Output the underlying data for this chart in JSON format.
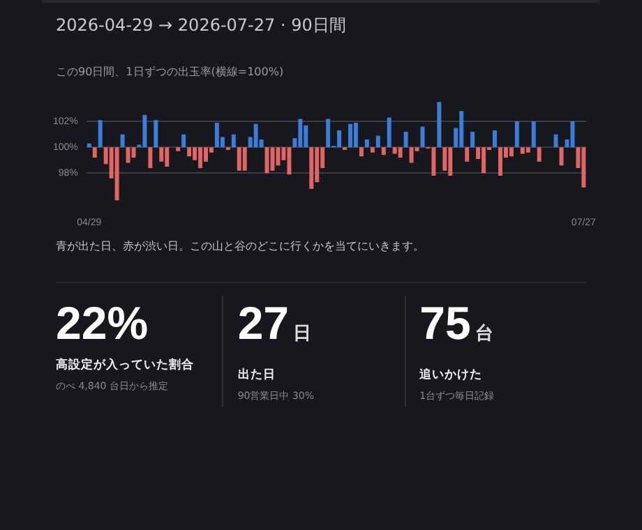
{
  "chart_data": [
    {
      "type": "bar",
      "title": "2026-04-29 → 2026-07-27 · 90日間",
      "subtitle": "この90日間、1日ずつの出玉率(横線=100%)",
      "annotations": [
        "青が出た日、赤が渋い日。この山と谷のどこに行くかを当てにいきます。"
      ],
      "categories": [
        "04/29",
        null,
        null,
        null,
        null,
        null,
        null,
        null,
        null,
        null,
        null,
        null,
        null,
        null,
        null,
        null,
        null,
        null,
        null,
        null,
        null,
        null,
        null,
        null,
        null,
        null,
        null,
        null,
        null,
        null,
        null,
        null,
        null,
        null,
        null,
        null,
        null,
        null,
        null,
        null,
        null,
        null,
        null,
        null,
        null,
        null,
        null,
        null,
        null,
        null,
        null,
        null,
        null,
        null,
        null,
        null,
        null,
        null,
        null,
        null,
        null,
        null,
        null,
        null,
        null,
        null,
        null,
        null,
        null,
        null,
        null,
        null,
        null,
        null,
        null,
        null,
        null,
        null,
        null,
        null,
        null,
        null,
        null,
        null,
        null,
        null,
        null,
        null,
        null,
        "07/27"
      ],
      "values": [
        0.3,
        -0.8,
        2.1,
        -1.3,
        -2.4,
        -4.1,
        1.0,
        -1.2,
        -0.8,
        0.2,
        2.5,
        -1.6,
        2.1,
        -1.1,
        -1.5,
        null,
        -0.3,
        1.0,
        -0.7,
        -1.0,
        -1.6,
        -1.1,
        -0.4,
        1.9,
        0.8,
        -0.2,
        1.0,
        -1.8,
        -1.8,
        0.8,
        1.8,
        0.6,
        -2.0,
        -1.8,
        -1.4,
        -1.0,
        -2.1,
        0.7,
        2.2,
        1.7,
        -3.2,
        -2.7,
        -1.6,
        2.2,
        0.1,
        1.3,
        -0.2,
        1.8,
        1.9,
        -0.7,
        0.6,
        -0.4,
        0.9,
        -0.6,
        2.3,
        -0.5,
        -0.8,
        1.2,
        -1.2,
        -0.3,
        1.6,
        -0.1,
        -2.2,
        3.5,
        -1.8,
        -2.2,
        1.5,
        2.8,
        -1.1,
        1.2,
        -0.9,
        -2.0,
        -0.2,
        1.3,
        -2.2,
        -0.8,
        -0.7,
        2.0,
        -0.5,
        -0.4,
        2.0,
        -1.1,
        null,
        null,
        1.0,
        -1.4,
        0.6,
        2.0,
        -1.6,
        -3.1
      ],
      "base": [
        100,
        100,
        100,
        100,
        100,
        100,
        100,
        100,
        100,
        100,
        100,
        100,
        100,
        100,
        100,
        null,
        100,
        100,
        100,
        100,
        100,
        100,
        100,
        100,
        100,
        100,
        100,
        100,
        100,
        100,
        100,
        100,
        100,
        100,
        100,
        100,
        100,
        100,
        100,
        100,
        100,
        100,
        100,
        100,
        100,
        100,
        100,
        100,
        100,
        100,
        100,
        100,
        100,
        100,
        100,
        100,
        100,
        100,
        100,
        100,
        100,
        100,
        100,
        100,
        100,
        100,
        100,
        100,
        100,
        100,
        100,
        100,
        100,
        100,
        100,
        100,
        100,
        100,
        100,
        100,
        100,
        100,
        null,
        null,
        100,
        100,
        100,
        100,
        100,
        100
      ],
      "colors": [
        "#3b7dd8",
        "#e06666",
        "#3b7dd8",
        "#e06666",
        "#e06666",
        "#e06666",
        "#3b7dd8",
        "#e06666",
        "#e06666",
        "#3b7dd8",
        "#3b7dd8",
        "#e06666",
        "#3b7dd8",
        "#e06666",
        "#e06666",
        "#e06666",
        "#e06666",
        "#3b7dd8",
        "#e06666",
        "#e06666",
        "#e06666",
        "#e06666",
        "#e06666",
        "#3b7dd8",
        "#3b7dd8",
        "#e06666",
        "#3b7dd8",
        "#e06666",
        "#e06666",
        "#3b7dd8",
        "#3b7dd8",
        "#3b7dd8",
        "#e06666",
        "#e06666",
        "#e06666",
        "#e06666",
        "#e06666",
        "#3b7dd8",
        "#3b7dd8",
        "#3b7dd8",
        "#e06666",
        "#e06666",
        "#e06666",
        "#3b7dd8",
        "#3b7dd8",
        "#3b7dd8",
        "#e06666",
        "#3b7dd8",
        "#3b7dd8",
        "#e06666",
        "#3b7dd8",
        "#e06666",
        "#3b7dd8",
        "#e06666",
        "#3b7dd8",
        "#e06666",
        "#e06666",
        "#3b7dd8",
        "#e06666",
        "#e06666",
        "#3b7dd8",
        "#e06666",
        "#e06666",
        "#3b7dd8",
        "#e06666",
        "#e06666",
        "#3b7dd8",
        "#3b7dd8",
        "#e06666",
        "#3b7dd8",
        "#e06666",
        "#e06666",
        "#e06666",
        "#3b7dd8",
        "#e06666",
        "#e06666",
        "#e06666",
        "#3b7dd8",
        "#e06666",
        "#e06666",
        "#3b7dd8",
        "#e06666",
        "#e06666",
        "#3b7dd8",
        "#3b7dd8",
        "#e06666",
        "#3b7dd8",
        "#3b7dd8",
        "#e06666",
        "#e06666"
      ],
      "ylim": [
        95.8,
        103.6
      ],
      "yticks": [
        {
          "value": 98,
          "label": "98%"
        },
        {
          "value": 100,
          "label": "100%"
        },
        {
          "value": 102,
          "label": "102%"
        }
      ],
      "grid": "y"
    },
    {
      "type": "other",
      "annotations": [
        "22%",
        "高設定が入っていた割合",
        "のべ 4,840 台日から推定",
        "27日",
        "出た日",
        "90営業日中 30%",
        "75台",
        "追いかけた",
        "1台ずつ毎日記録"
      ]
    }
  ]
}
